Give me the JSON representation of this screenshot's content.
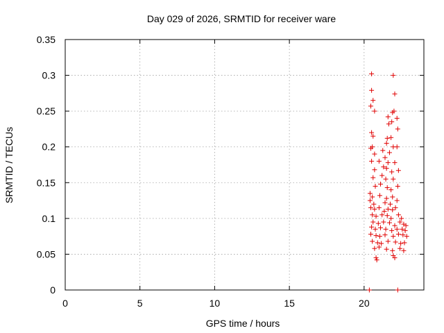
{
  "chart_data": {
    "type": "scatter",
    "title": "Day 029 of 2026, SRMTID for receiver ware",
    "xlabel": "GPS time / hours",
    "ylabel": "SRMTID / TECUs",
    "xlim": [
      0,
      24
    ],
    "ylim": [
      0,
      0.35
    ],
    "xticks": [
      0,
      5,
      10,
      15,
      20
    ],
    "yticks": [
      0,
      0.05,
      0.1,
      0.15,
      0.2,
      0.25,
      0.3,
      0.35
    ],
    "ytick_labels": [
      "0",
      "0.05",
      "0.1",
      "0.15",
      "0.2",
      "0.25",
      "0.3",
      "0.35"
    ],
    "grid": true,
    "marker": "plus",
    "colors": {
      "series": "#e00000",
      "grid": "#a0a0a0",
      "axis": "#000000"
    },
    "series": [
      {
        "name": "SRMTID",
        "points": [
          [
            20.35,
            0.0
          ],
          [
            22.25,
            0.0
          ],
          [
            20.5,
            0.302
          ],
          [
            21.95,
            0.3
          ],
          [
            20.5,
            0.279
          ],
          [
            22.05,
            0.274
          ],
          [
            20.6,
            0.265
          ],
          [
            20.45,
            0.257
          ],
          [
            20.7,
            0.25
          ],
          [
            22.0,
            0.25
          ],
          [
            21.9,
            0.248
          ],
          [
            22.2,
            0.24
          ],
          [
            21.6,
            0.242
          ],
          [
            21.65,
            0.232
          ],
          [
            21.85,
            0.235
          ],
          [
            22.25,
            0.225
          ],
          [
            20.5,
            0.22
          ],
          [
            20.6,
            0.215
          ],
          [
            21.55,
            0.212
          ],
          [
            21.8,
            0.213
          ],
          [
            20.55,
            0.2
          ],
          [
            20.45,
            0.198
          ],
          [
            21.5,
            0.205
          ],
          [
            21.95,
            0.2
          ],
          [
            22.2,
            0.2
          ],
          [
            20.7,
            0.19
          ],
          [
            21.25,
            0.195
          ],
          [
            21.7,
            0.192
          ],
          [
            21.4,
            0.185
          ],
          [
            20.5,
            0.18
          ],
          [
            21.0,
            0.18
          ],
          [
            21.6,
            0.178
          ],
          [
            22.05,
            0.178
          ],
          [
            20.7,
            0.168
          ],
          [
            21.3,
            0.172
          ],
          [
            21.5,
            0.17
          ],
          [
            21.85,
            0.165
          ],
          [
            22.3,
            0.167
          ],
          [
            20.6,
            0.157
          ],
          [
            21.2,
            0.16
          ],
          [
            21.45,
            0.155
          ],
          [
            21.95,
            0.155
          ],
          [
            20.75,
            0.145
          ],
          [
            21.1,
            0.148
          ],
          [
            21.55,
            0.143
          ],
          [
            21.8,
            0.14
          ],
          [
            22.25,
            0.145
          ],
          [
            20.4,
            0.135
          ],
          [
            20.55,
            0.13
          ],
          [
            21.05,
            0.132
          ],
          [
            21.5,
            0.128
          ],
          [
            21.9,
            0.13
          ],
          [
            20.4,
            0.125
          ],
          [
            20.65,
            0.12
          ],
          [
            21.4,
            0.122
          ],
          [
            21.75,
            0.12
          ],
          [
            22.2,
            0.125
          ],
          [
            20.45,
            0.115
          ],
          [
            20.7,
            0.113
          ],
          [
            21.0,
            0.115
          ],
          [
            21.35,
            0.11
          ],
          [
            21.6,
            0.113
          ],
          [
            21.9,
            0.112
          ],
          [
            22.1,
            0.115
          ],
          [
            20.55,
            0.105
          ],
          [
            20.8,
            0.103
          ],
          [
            21.2,
            0.105
          ],
          [
            21.55,
            0.104
          ],
          [
            21.8,
            0.1
          ],
          [
            22.3,
            0.105
          ],
          [
            22.5,
            0.1
          ],
          [
            20.6,
            0.095
          ],
          [
            20.95,
            0.093
          ],
          [
            21.3,
            0.095
          ],
          [
            21.7,
            0.094
          ],
          [
            22.05,
            0.09
          ],
          [
            22.4,
            0.095
          ],
          [
            22.65,
            0.092
          ],
          [
            22.8,
            0.09
          ],
          [
            20.5,
            0.088
          ],
          [
            20.75,
            0.085
          ],
          [
            21.1,
            0.087
          ],
          [
            21.45,
            0.085
          ],
          [
            21.85,
            0.083
          ],
          [
            22.2,
            0.085
          ],
          [
            22.55,
            0.085
          ],
          [
            22.75,
            0.083
          ],
          [
            20.45,
            0.078
          ],
          [
            20.8,
            0.076
          ],
          [
            21.05,
            0.075
          ],
          [
            21.4,
            0.077
          ],
          [
            21.95,
            0.075
          ],
          [
            22.3,
            0.078
          ],
          [
            22.6,
            0.077
          ],
          [
            22.85,
            0.075
          ],
          [
            20.55,
            0.068
          ],
          [
            20.9,
            0.066
          ],
          [
            21.15,
            0.065
          ],
          [
            21.6,
            0.068
          ],
          [
            22.1,
            0.067
          ],
          [
            22.45,
            0.065
          ],
          [
            22.7,
            0.066
          ],
          [
            20.7,
            0.058
          ],
          [
            21.0,
            0.06
          ],
          [
            21.5,
            0.057
          ],
          [
            21.9,
            0.055
          ],
          [
            22.4,
            0.058
          ],
          [
            22.65,
            0.055
          ],
          [
            20.8,
            0.045
          ],
          [
            20.85,
            0.042
          ],
          [
            21.95,
            0.048
          ],
          [
            22.05,
            0.045
          ]
        ]
      }
    ]
  }
}
